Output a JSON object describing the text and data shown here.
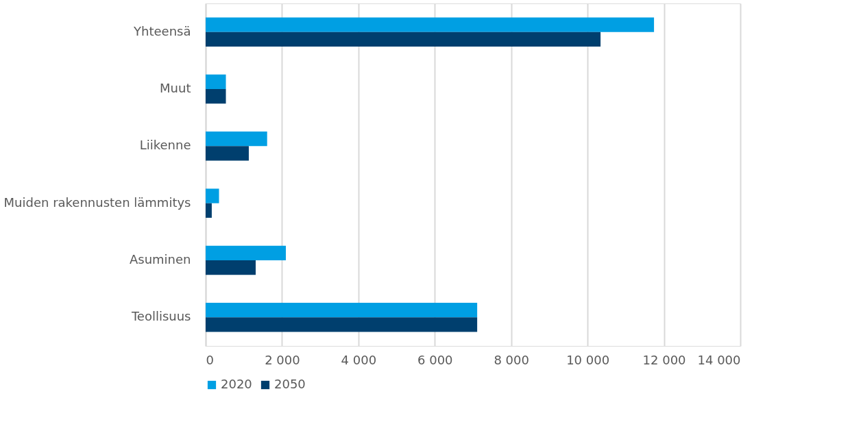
{
  "chart_data": {
    "type": "bar",
    "orientation": "horizontal",
    "categories": [
      "Yhteensä",
      "Muut",
      "Liikenne",
      "Muiden rakennusten lämmitys",
      "Asuminen",
      "Teollisuus"
    ],
    "series": [
      {
        "name": "2020",
        "color": "#009fe3",
        "values": [
          11740,
          530,
          1610,
          350,
          2100,
          7110
        ]
      },
      {
        "name": "2050",
        "color": "#003f6e",
        "values": [
          10340,
          530,
          1130,
          160,
          1310,
          7110
        ]
      }
    ],
    "xlim": [
      0,
      14000
    ],
    "xticks": [
      0,
      {
        "value": 2000,
        "label": "2 000"
      },
      {
        "value": 4000,
        "label": "4 000"
      },
      {
        "value": 6000,
        "label": "6 000"
      },
      {
        "value": 8000,
        "label": "8 000"
      },
      {
        "value": 10000,
        "label": "10 000"
      },
      {
        "value": 12000,
        "label": "12 000"
      },
      {
        "value": 14000,
        "label": "14 000"
      }
    ],
    "grid": "x",
    "legend": "bottom"
  }
}
